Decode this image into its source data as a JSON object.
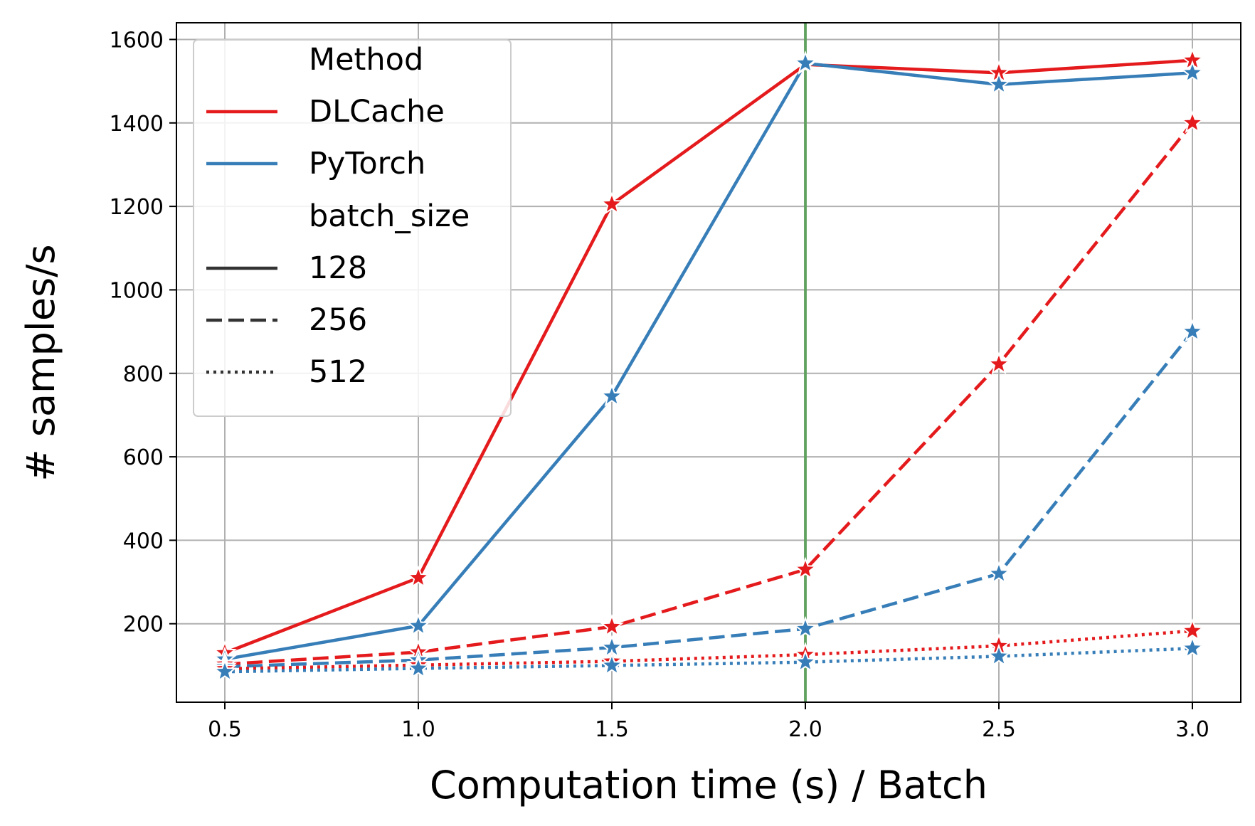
{
  "chart_data": {
    "type": "line",
    "title": "",
    "xlabel": "Computation time (s) / Batch",
    "ylabel": "# samples/s",
    "xlim": [
      0.375,
      3.125
    ],
    "ylim": [
      12,
      1640
    ],
    "xticks": [
      "0.5",
      "1.0",
      "1.5",
      "2.0",
      "2.5",
      "3.0"
    ],
    "xtick_values": [
      0.5,
      1.0,
      1.5,
      2.0,
      2.5,
      3.0
    ],
    "yticks": [
      "200",
      "400",
      "600",
      "800",
      "1000",
      "1200",
      "1400",
      "1600"
    ],
    "ytick_values": [
      200,
      400,
      600,
      800,
      1000,
      1200,
      1400,
      1600
    ],
    "grid": true,
    "marker": "star",
    "vertical_line": {
      "x": 2.0,
      "color": "#5aa05a"
    },
    "colors": {
      "DLCache": "#e41a1c",
      "PyTorch": "#377eb8"
    },
    "legend": {
      "placement": "upper-left",
      "entries": [
        {
          "label": "Method",
          "kind": "header"
        },
        {
          "label": "DLCache",
          "kind": "color",
          "color": "#e41a1c"
        },
        {
          "label": "PyTorch",
          "kind": "color",
          "color": "#377eb8"
        },
        {
          "label": "batch_size",
          "kind": "header"
        },
        {
          "label": "128",
          "kind": "style",
          "dash": "solid"
        },
        {
          "label": "256",
          "kind": "style",
          "dash": "dashed"
        },
        {
          "label": "512",
          "kind": "style",
          "dash": "dotted"
        }
      ]
    },
    "x": [
      0.5,
      1.0,
      1.5,
      2.0,
      2.5,
      3.0
    ],
    "series": [
      {
        "method": "DLCache",
        "batch_size": "128",
        "values": [
          130,
          310,
          1205,
          1540,
          1520,
          1550
        ]
      },
      {
        "method": "PyTorch",
        "batch_size": "128",
        "values": [
          115,
          195,
          745,
          1543,
          1492,
          1520
        ]
      },
      {
        "method": "DLCache",
        "batch_size": "256",
        "values": [
          103,
          132,
          193,
          330,
          822,
          1400
        ]
      },
      {
        "method": "PyTorch",
        "batch_size": "256",
        "values": [
          97,
          113,
          143,
          188,
          320,
          900
        ]
      },
      {
        "method": "DLCache",
        "batch_size": "512",
        "values": [
          92,
          101,
          110,
          126,
          147,
          183
        ]
      },
      {
        "method": "PyTorch",
        "batch_size": "512",
        "values": [
          85,
          93,
          100,
          108,
          122,
          141
        ]
      }
    ]
  }
}
